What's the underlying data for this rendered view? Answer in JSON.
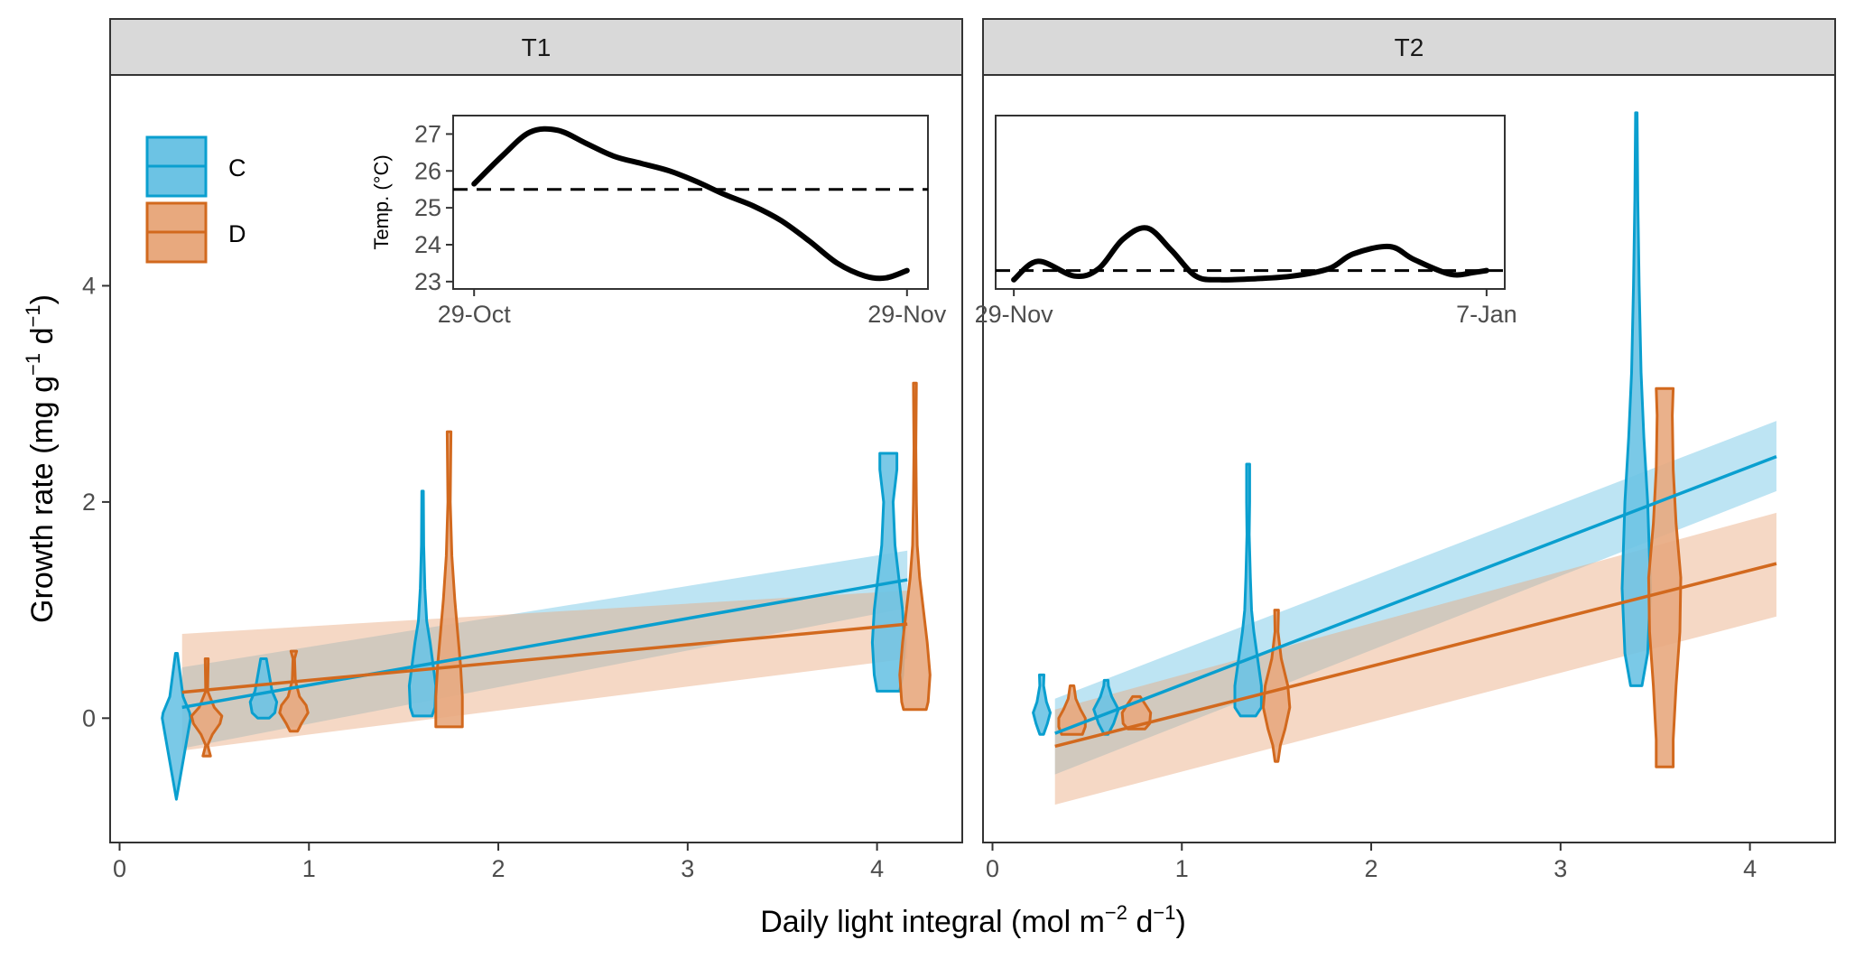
{
  "chart_data": {
    "type": "violin",
    "y_axis": {
      "title": "Growth rate",
      "unit_text": "mg g",
      "unit_exp1": "−1",
      "unit_mid": " d",
      "unit_exp2": "−1",
      "ylim": [
        -1.15,
        5.95
      ],
      "ticks": [
        0,
        2,
        4
      ],
      "tick_labels": [
        "0",
        "2",
        "4"
      ]
    },
    "x_axis": {
      "title": "Daily light integral",
      "unit_text": "mol m",
      "unit_exp1": "−2",
      "unit_mid": " d",
      "unit_exp2": "−1",
      "xlim": [
        -0.05,
        4.45
      ],
      "ticks": [
        0,
        1,
        2,
        3,
        4
      ],
      "tick_labels": [
        "0",
        "1",
        "2",
        "3",
        "4"
      ]
    },
    "legend": {
      "placement": "top-left",
      "entries": [
        {
          "label": "C",
          "color": "#0a9fcf",
          "fill": "#6cc3e4"
        },
        {
          "label": "D",
          "color": "#d2691e",
          "fill": "#e8a97e"
        }
      ]
    },
    "panels": [
      {
        "label": "T1",
        "violins": [
          {
            "group": "C",
            "x": 0.3,
            "y": [
              -0.75,
              -0.55,
              -0.15,
              0.0,
              0.05,
              0.2,
              0.6
            ],
            "w": [
              0.0,
              0.02,
              0.06,
              0.075,
              0.07,
              0.035,
              0.005
            ]
          },
          {
            "group": "D",
            "x": 0.46,
            "y": [
              -0.35,
              -0.25,
              -0.15,
              -0.05,
              0.02,
              0.1,
              0.25,
              0.55
            ],
            "w": [
              0.02,
              0.005,
              0.03,
              0.07,
              0.08,
              0.04,
              0.005,
              0.008
            ]
          },
          {
            "group": "C",
            "x": 0.76,
            "y": [
              0.0,
              0.05,
              0.15,
              0.25,
              0.45,
              0.55
            ],
            "w": [
              0.03,
              0.06,
              0.07,
              0.045,
              0.025,
              0.015
            ]
          },
          {
            "group": "D",
            "x": 0.92,
            "y": [
              -0.12,
              -0.05,
              0.05,
              0.12,
              0.2,
              0.35,
              0.55,
              0.62
            ],
            "w": [
              0.02,
              0.04,
              0.075,
              0.065,
              0.03,
              0.008,
              0.004,
              0.015
            ]
          },
          {
            "group": "C",
            "x": 1.6,
            "y": [
              0.02,
              0.1,
              0.3,
              0.5,
              0.7,
              0.9,
              1.2,
              1.6,
              2.1
            ],
            "w": [
              0.05,
              0.065,
              0.07,
              0.055,
              0.04,
              0.022,
              0.012,
              0.006,
              0.004
            ]
          },
          {
            "group": "D",
            "x": 1.74,
            "y": [
              -0.08,
              0.0,
              0.2,
              0.5,
              0.8,
              1.1,
              1.5,
              2.0,
              2.65
            ],
            "w": [
              0.07,
              0.07,
              0.07,
              0.06,
              0.045,
              0.03,
              0.015,
              0.006,
              0.01
            ]
          },
          {
            "group": "C",
            "x": 4.06,
            "y": [
              0.25,
              0.4,
              0.7,
              1.0,
              1.3,
              1.6,
              2.0,
              2.3,
              2.45
            ],
            "w": [
              0.06,
              0.075,
              0.085,
              0.075,
              0.055,
              0.035,
              0.025,
              0.045,
              0.045
            ]
          },
          {
            "group": "D",
            "x": 4.2,
            "y": [
              0.08,
              0.15,
              0.4,
              0.7,
              1.0,
              1.3,
              1.6,
              2.0,
              2.5,
              3.1
            ],
            "w": [
              0.06,
              0.07,
              0.08,
              0.065,
              0.045,
              0.025,
              0.012,
              0.008,
              0.005,
              0.008
            ]
          }
        ],
        "fits": [
          {
            "group": "C",
            "x": [
              0.33,
              4.16
            ],
            "y": [
              0.1,
              1.28
            ],
            "lower": [
              -0.28,
              1.02
            ],
            "upper": [
              0.47,
              1.55
            ]
          },
          {
            "group": "D",
            "x": [
              0.33,
              4.16
            ],
            "y": [
              0.24,
              0.87
            ],
            "lower": [
              -0.3,
              0.55
            ],
            "upper": [
              0.78,
              1.18
            ]
          }
        ],
        "inset": {
          "ylabel": "Temp. (°C)",
          "yticks": [
            23,
            24,
            25,
            26,
            27
          ],
          "ylim": [
            22.8,
            27.5
          ],
          "xlim": [
            -1.5,
            32.5
          ],
          "xticks": [
            0,
            31
          ],
          "xtick_labels": [
            "29-Oct",
            "29-Nov"
          ],
          "threshold": 25.5,
          "x": [
            0,
            2,
            4,
            6,
            8,
            10,
            12,
            14,
            16,
            18,
            20,
            22,
            24,
            26,
            28,
            29.5,
            31
          ],
          "temp": [
            25.65,
            26.4,
            27.05,
            27.1,
            26.75,
            26.4,
            26.2,
            26.0,
            25.7,
            25.35,
            25.05,
            24.65,
            24.1,
            23.5,
            23.15,
            23.1,
            23.3
          ]
        }
      },
      {
        "label": "T2",
        "violins": [
          {
            "group": "C",
            "x": 0.26,
            "y": [
              -0.15,
              -0.05,
              0.05,
              0.15,
              0.3,
              0.4
            ],
            "w": [
              0.01,
              0.03,
              0.045,
              0.025,
              0.01,
              0.012
            ]
          },
          {
            "group": "D",
            "x": 0.42,
            "y": [
              -0.15,
              -0.08,
              0.0,
              0.08,
              0.18,
              0.3
            ],
            "w": [
              0.055,
              0.07,
              0.07,
              0.045,
              0.02,
              0.01
            ]
          },
          {
            "group": "C",
            "x": 0.6,
            "y": [
              -0.15,
              -0.05,
              0.08,
              0.2,
              0.3,
              0.35
            ],
            "w": [
              0.01,
              0.04,
              0.065,
              0.03,
              0.012,
              0.01
            ]
          },
          {
            "group": "D",
            "x": 0.76,
            "y": [
              -0.1,
              -0.05,
              0.05,
              0.12,
              0.2
            ],
            "w": [
              0.045,
              0.07,
              0.075,
              0.05,
              0.02
            ]
          },
          {
            "group": "C",
            "x": 1.35,
            "y": [
              0.02,
              0.1,
              0.3,
              0.55,
              0.8,
              1.0,
              1.3,
              1.7,
              2.0,
              2.35
            ],
            "w": [
              0.04,
              0.07,
              0.07,
              0.05,
              0.03,
              0.018,
              0.012,
              0.006,
              0.008,
              0.008
            ]
          },
          {
            "group": "D",
            "x": 1.5,
            "y": [
              -0.4,
              -0.25,
              -0.1,
              0.1,
              0.3,
              0.55,
              0.8,
              1.0
            ],
            "w": [
              0.008,
              0.02,
              0.045,
              0.07,
              0.06,
              0.025,
              0.008,
              0.01
            ]
          },
          {
            "group": "C",
            "x": 3.4,
            "y": [
              0.3,
              0.6,
              1.2,
              2.0,
              2.6,
              3.2,
              4.0,
              4.8,
              5.6
            ],
            "w": [
              0.03,
              0.06,
              0.075,
              0.06,
              0.04,
              0.025,
              0.015,
              0.008,
              0.004
            ]
          },
          {
            "group": "D",
            "x": 3.55,
            "y": [
              -0.45,
              -0.2,
              0.3,
              0.8,
              1.3,
              1.8,
              2.3,
              2.8,
              3.05
            ],
            "w": [
              0.045,
              0.045,
              0.06,
              0.08,
              0.085,
              0.06,
              0.045,
              0.04,
              0.045
            ]
          }
        ],
        "fits": [
          {
            "group": "C",
            "x": [
              0.33,
              4.14
            ],
            "y": [
              -0.14,
              2.42
            ],
            "lower": [
              -0.52,
              2.1
            ],
            "upper": [
              0.18,
              2.75
            ]
          },
          {
            "group": "D",
            "x": [
              0.33,
              4.14
            ],
            "y": [
              -0.26,
              1.43
            ],
            "lower": [
              -0.8,
              0.94
            ],
            "upper": [
              0.08,
              1.9
            ]
          }
        ],
        "inset": {
          "ylabel": "",
          "yticks": [],
          "ylim": [
            22.8,
            27.5
          ],
          "xlim": [
            -1.5,
            40.5
          ],
          "xticks": [
            0,
            39
          ],
          "xtick_labels": [
            "29-Nov",
            "7-Jan"
          ],
          "threshold": 23.3,
          "x": [
            0,
            2,
            5,
            7,
            9,
            11,
            13,
            15,
            17,
            20,
            23,
            26,
            28,
            31,
            33,
            36,
            38,
            39
          ],
          "temp": [
            23.05,
            23.55,
            23.15,
            23.35,
            24.15,
            24.45,
            23.85,
            23.15,
            23.05,
            23.08,
            23.15,
            23.35,
            23.75,
            23.95,
            23.6,
            23.2,
            23.25,
            23.3
          ]
        }
      }
    ]
  }
}
